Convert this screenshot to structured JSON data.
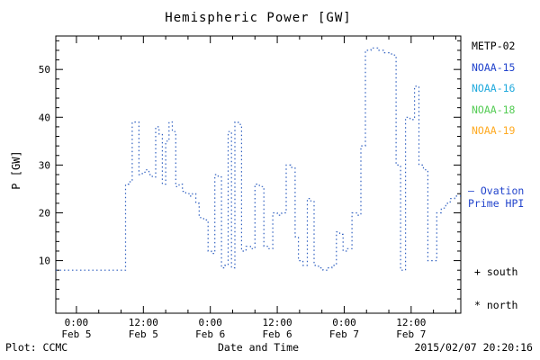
{
  "title": "Hemispheric Power [GW]",
  "legend": {
    "satellites": [
      {
        "label": "METP-02",
        "color": "#000000"
      },
      {
        "label": "NOAA-15",
        "color": "#2244cc"
      },
      {
        "label": "NOAA-16",
        "color": "#22aadd"
      },
      {
        "label": "NOAA-18",
        "color": "#55cc55"
      },
      {
        "label": "NOAA-19",
        "color": "#ffaa22"
      }
    ],
    "model_note_lines": [
      "– Ovation",
      "Prime HPI"
    ],
    "model_note_color": "#2244cc",
    "south_label": "+ south",
    "north_label": "* north"
  },
  "footer": {
    "credit": "Plot: CCMC",
    "timestamp": "2015/02/07 20:20:16"
  },
  "chart_data": {
    "type": "line",
    "step": true,
    "line_style": "dotted",
    "line_color": "#3060c0",
    "title": "Hemispheric Power [GW]",
    "xlabel": "Date and Time",
    "ylabel": "P [GW]",
    "x_unit": "hours since 2015-02-05 00:00",
    "xlim": [
      -3.7,
      68.9
    ],
    "ylim": [
      -1,
      57
    ],
    "grid": false,
    "legend_position": "right-outside",
    "y_ticks": [
      10,
      20,
      30,
      40,
      50
    ],
    "x_ticks": [
      {
        "pos": 0,
        "label": "0:00",
        "sub": "Feb 5"
      },
      {
        "pos": 12,
        "label": "12:00",
        "sub": "Feb 5"
      },
      {
        "pos": 24,
        "label": "0:00",
        "sub": "Feb 6"
      },
      {
        "pos": 36,
        "label": "12:00",
        "sub": "Feb 6"
      },
      {
        "pos": 48,
        "label": "0:00",
        "sub": "Feb 7"
      },
      {
        "pos": 60,
        "label": "12:00",
        "sub": "Feb 7"
      }
    ],
    "points": [
      [
        -3.7,
        8
      ],
      [
        0,
        8
      ],
      [
        2,
        8
      ],
      [
        4,
        8
      ],
      [
        6,
        8
      ],
      [
        8,
        8
      ],
      [
        8.8,
        26
      ],
      [
        9.4,
        26.5
      ],
      [
        10,
        39
      ],
      [
        10.6,
        39
      ],
      [
        11.2,
        28
      ],
      [
        11.8,
        28.5
      ],
      [
        12.4,
        29
      ],
      [
        13,
        28
      ],
      [
        13.6,
        27.5
      ],
      [
        14.2,
        38
      ],
      [
        14.8,
        36.5
      ],
      [
        15.4,
        26
      ],
      [
        16,
        35
      ],
      [
        16.6,
        39
      ],
      [
        17.2,
        37
      ],
      [
        17.8,
        25.5
      ],
      [
        18.4,
        26
      ],
      [
        19,
        24.5
      ],
      [
        19.6,
        24
      ],
      [
        20.2,
        23.5
      ],
      [
        20.8,
        24
      ],
      [
        21.4,
        22
      ],
      [
        22,
        19
      ],
      [
        22.8,
        18.5
      ],
      [
        23.6,
        12
      ],
      [
        24.2,
        11.5
      ],
      [
        24.8,
        28
      ],
      [
        25.4,
        27.5
      ],
      [
        26,
        8.5
      ],
      [
        26.6,
        9
      ],
      [
        27.2,
        37
      ],
      [
        27.8,
        8.5
      ],
      [
        28.4,
        39
      ],
      [
        29,
        38.5
      ],
      [
        29.6,
        12
      ],
      [
        30.4,
        13
      ],
      [
        31.2,
        12.5
      ],
      [
        32,
        26
      ],
      [
        32.8,
        25.5
      ],
      [
        33.6,
        13
      ],
      [
        34.4,
        12.5
      ],
      [
        35.2,
        20
      ],
      [
        36,
        19.5
      ],
      [
        36.8,
        20
      ],
      [
        37.6,
        30
      ],
      [
        38.4,
        29.5
      ],
      [
        39.2,
        15
      ],
      [
        39.8,
        10
      ],
      [
        40.6,
        9
      ],
      [
        41.4,
        23
      ],
      [
        42,
        22.5
      ],
      [
        42.6,
        9
      ],
      [
        43.4,
        8.5
      ],
      [
        44.2,
        8
      ],
      [
        45,
        8.5
      ],
      [
        45.8,
        9
      ],
      [
        46.6,
        16
      ],
      [
        47.2,
        15.5
      ],
      [
        47.8,
        12
      ],
      [
        48.6,
        12.5
      ],
      [
        49.4,
        20
      ],
      [
        50.2,
        19.5
      ],
      [
        51,
        34
      ],
      [
        51.8,
        54
      ],
      [
        52.8,
        54.5
      ],
      [
        54,
        54
      ],
      [
        55,
        53.5
      ],
      [
        56.5,
        53
      ],
      [
        57.3,
        30
      ],
      [
        58.1,
        8
      ],
      [
        59,
        40
      ],
      [
        59.8,
        39.5
      ],
      [
        60.6,
        46.5
      ],
      [
        61.4,
        30
      ],
      [
        62.2,
        29
      ],
      [
        63,
        10
      ],
      [
        63.8,
        10
      ],
      [
        64.6,
        20
      ],
      [
        65.4,
        21
      ],
      [
        66.2,
        22
      ],
      [
        67,
        23
      ],
      [
        67.8,
        23.5
      ]
    ]
  }
}
